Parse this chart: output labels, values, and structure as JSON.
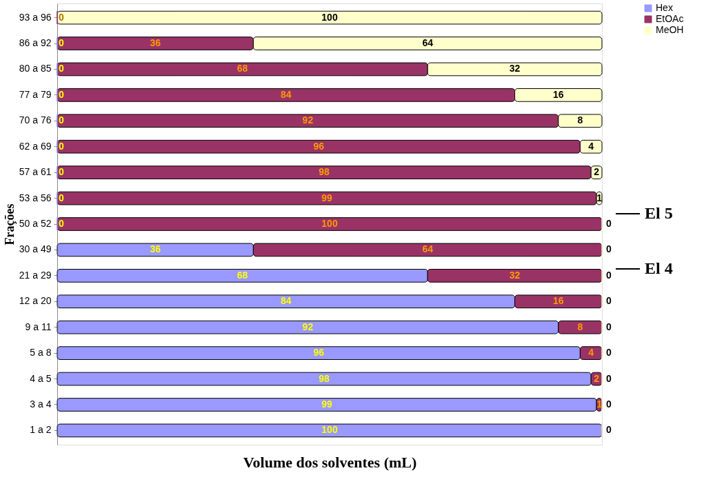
{
  "chart_data": {
    "type": "bar",
    "orientation": "horizontal",
    "stacked": true,
    "xlabel": "Volume dos solventes (mL)",
    "ylabel": "Frações",
    "categories": [
      "93 a 96",
      "86 a 92",
      "80 a 85",
      "77 a 79",
      "70 a 76",
      "62 a 69",
      "57 a 61",
      "53 a 56",
      "50 a 52",
      "30 a 49",
      "21 a 29",
      "12 a 20",
      "9 a 11",
      "5 a 8",
      "4 a 5",
      "3 a 4",
      "1 a 2"
    ],
    "series": [
      {
        "name": "Hex",
        "color": "#9999ff",
        "values": [
          0,
          0,
          0,
          0,
          0,
          0,
          0,
          0,
          0,
          36,
          68,
          84,
          92,
          96,
          98,
          99,
          100
        ],
        "value_labels": [
          "0",
          "0",
          "0",
          "0",
          "0",
          "0",
          "0",
          "0",
          "0",
          "36",
          "68",
          "84",
          "92",
          "96",
          "98",
          "99",
          "100"
        ]
      },
      {
        "name": "EtOAc",
        "color": "#993366",
        "values": [
          0,
          36,
          68,
          84,
          92,
          96,
          98,
          99,
          100,
          64,
          32,
          16,
          8,
          4,
          2,
          1,
          0
        ],
        "value_labels": [
          null,
          "36",
          "68",
          "84",
          "92",
          "96",
          "98",
          "99",
          "100",
          "64",
          "32",
          "16",
          "8",
          "4",
          "2",
          "1",
          null
        ]
      },
      {
        "name": "MeOH",
        "color": "#ffffcc",
        "values": [
          100,
          64,
          32,
          16,
          8,
          4,
          2,
          1,
          0,
          0,
          0,
          0,
          0,
          0,
          0,
          0,
          0
        ],
        "value_labels": [
          "100",
          "64",
          "32",
          "16",
          "8",
          "4",
          "2",
          "1",
          "0",
          "0",
          "0",
          "0",
          "0",
          "0",
          "0",
          "0",
          "0"
        ]
      }
    ],
    "legend": "top right",
    "grid": false,
    "annotations": [
      "El 5",
      "El 4"
    ]
  }
}
